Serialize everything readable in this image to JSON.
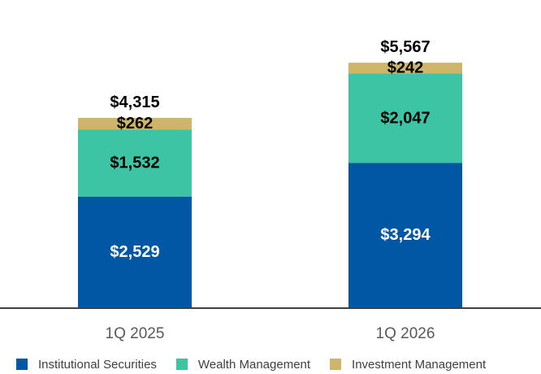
{
  "chart_data": {
    "type": "bar",
    "stacked": true,
    "categories": [
      "1Q 2025",
      "1Q 2026"
    ],
    "series": [
      {
        "name": "Institutional Securities",
        "values": [
          2529,
          3294
        ],
        "labels": [
          "$2,529",
          "$3,294"
        ],
        "color": "#0057A3",
        "label_color": "#ffffff"
      },
      {
        "name": "Wealth Management",
        "values": [
          1532,
          2047
        ],
        "labels": [
          "$1,532",
          "$2,047"
        ],
        "color": "#3CC4A5",
        "label_color": "#000000"
      },
      {
        "name": "Investment Management",
        "values": [
          262,
          242
        ],
        "labels": [
          "$262",
          "$242"
        ],
        "color": "#CDB56A",
        "label_color": "#000000"
      }
    ],
    "totals": [
      4315,
      5567
    ],
    "total_labels": [
      "$4,315",
      "$5,567"
    ],
    "ylim": [
      0,
      5567
    ],
    "grid": false,
    "legend_position": "bottom"
  }
}
